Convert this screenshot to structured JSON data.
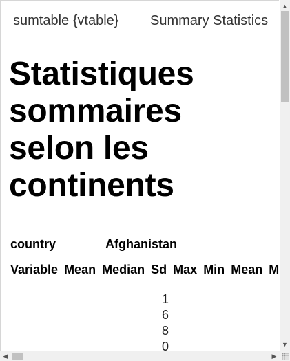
{
  "header": {
    "package": "sumtable {vtable}",
    "doc_title": "Summary Statistics"
  },
  "main": {
    "title": "Statistiques sommaires selon les continents",
    "group_label": "country",
    "group_value": "Afghanistan",
    "columns": [
      "Variable",
      "Mean",
      "Median",
      "Sd",
      "Max",
      "Min",
      "Mean",
      "Me"
    ],
    "first_cell_digits": [
      "1",
      "6",
      "8",
      "0"
    ]
  },
  "icons": {
    "scroll_up": "arrow-up-icon",
    "scroll_down": "arrow-down-icon",
    "scroll_left": "arrow-left-icon",
    "scroll_right": "arrow-right-icon",
    "resize": "resize-grip-icon"
  }
}
